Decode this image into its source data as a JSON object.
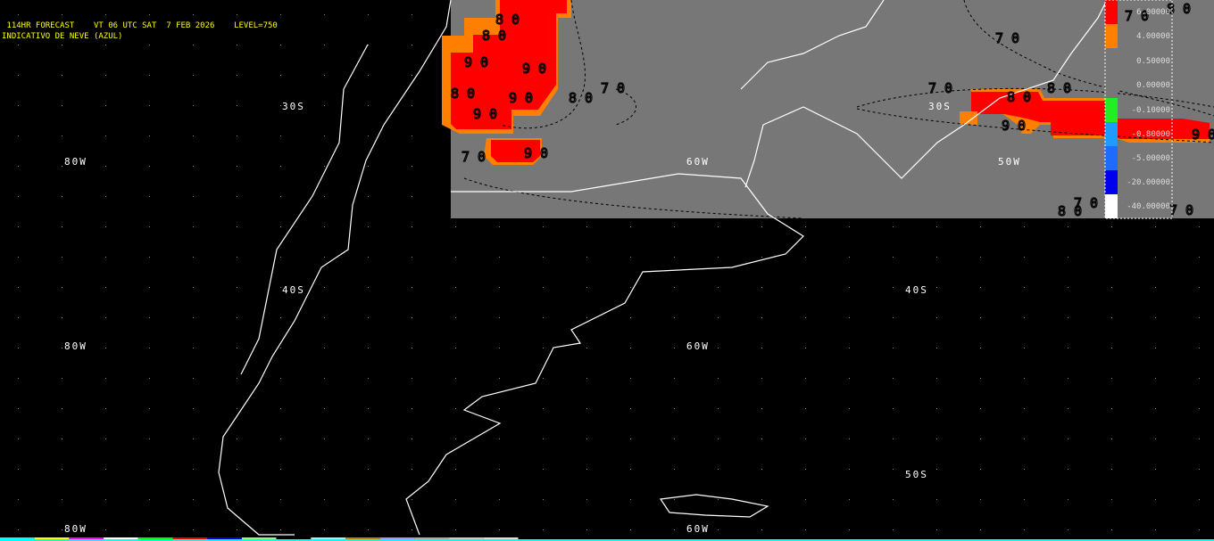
{
  "header": {
    "line1": " 114HR FORECAST    VT 06 UTC SAT  7 FEB 2026    LEVEL=750",
    "line2": "INDICATIVO DE NEVE (AZUL)"
  },
  "grid_labels": [
    {
      "text": "30S"
    },
    {
      "text": "80W"
    },
    {
      "text": "40S"
    },
    {
      "text": "80W"
    },
    {
      "text": "60W"
    },
    {
      "text": "40S"
    },
    {
      "text": "50S"
    },
    {
      "text": "80W"
    },
    {
      "text": "60W"
    },
    {
      "text": "60W"
    },
    {
      "text": "30S"
    },
    {
      "text": "50W"
    }
  ],
  "contour_labels": [
    "80",
    "80",
    "90",
    "90",
    "80",
    "90",
    "90",
    "80",
    "70",
    "70",
    "90",
    "70",
    "70",
    "80",
    "90",
    "90",
    "80",
    "70",
    "80",
    "70",
    "80",
    "70"
  ],
  "legend": {
    "levels": [
      {
        "value": "6.00000",
        "color": "#ff0000"
      },
      {
        "value": "4.00000",
        "color": "#ff8000"
      },
      {
        "value": "0.50000",
        "color": "#777777"
      },
      {
        "value": "0.00000",
        "color": "#777777"
      },
      {
        "value": "-0.10000",
        "color": "#22ee22"
      },
      {
        "value": "-0.80000",
        "color": "#1e9bff"
      },
      {
        "value": "-5.00000",
        "color": "#1e6cff"
      },
      {
        "value": "-20.00000",
        "color": "#0000ee"
      },
      {
        "value": "-40.00000",
        "color": "#ffffff"
      }
    ]
  },
  "colors": {
    "background": "#000000",
    "inset": "#777777",
    "precip": "#ff0000",
    "precip_edge": "#ff8000",
    "coast": "#ffffff",
    "header_text": "#ffff00"
  }
}
